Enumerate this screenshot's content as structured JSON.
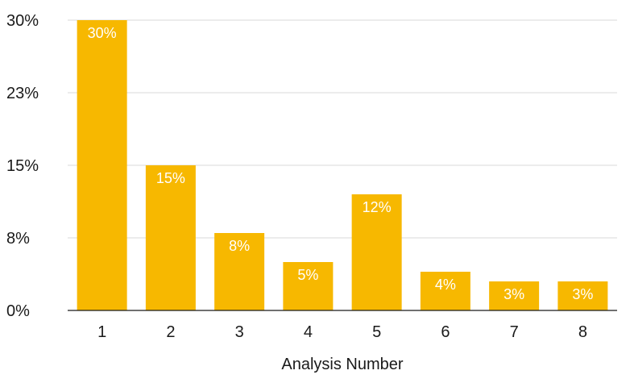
{
  "chart_data": {
    "type": "bar",
    "title": "",
    "xlabel": "Analysis Number",
    "ylabel": "",
    "categories": [
      "1",
      "2",
      "3",
      "4",
      "5",
      "6",
      "7",
      "8"
    ],
    "values": [
      30,
      15,
      8,
      5,
      12,
      4,
      3,
      3
    ],
    "data_labels": [
      "30%",
      "15%",
      "8%",
      "5%",
      "12%",
      "4%",
      "3%",
      "3%"
    ],
    "ylim": [
      0,
      30
    ],
    "y_ticks": [
      0,
      7.5,
      15,
      22.5,
      30
    ],
    "y_tick_labels": [
      "0%",
      "8%",
      "15%",
      "23%",
      "30%"
    ],
    "grid": true,
    "legend": "none",
    "bar_color": "#F7B800",
    "grid_color": "#d9d9d9",
    "axis_color": "#1a1a1a"
  }
}
